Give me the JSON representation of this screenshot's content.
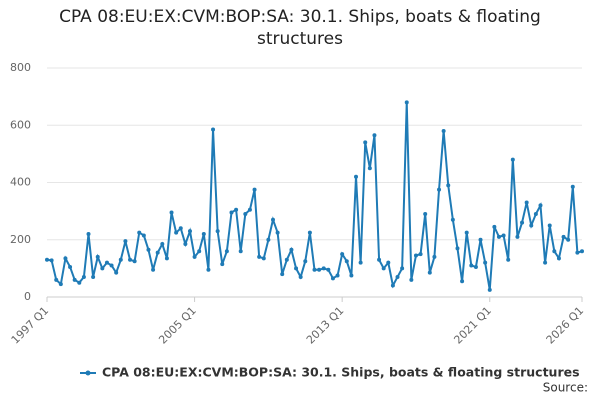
{
  "chart_data": {
    "type": "line",
    "title": "CPA 08:EU:EX:CVM:BOP:SA: 30.1. Ships, boats & floating structures",
    "categories": [
      "1997 Q1",
      null,
      null,
      null,
      null,
      null,
      null,
      null,
      null,
      null,
      null,
      null,
      null,
      null,
      null,
      null,
      null,
      null,
      null,
      null,
      null,
      null,
      null,
      null,
      null,
      null,
      null,
      null,
      null,
      null,
      null,
      null,
      "2005 Q1",
      null,
      null,
      null,
      null,
      null,
      null,
      null,
      null,
      null,
      null,
      null,
      null,
      null,
      null,
      null,
      null,
      null,
      null,
      null,
      null,
      null,
      null,
      null,
      null,
      null,
      null,
      null,
      null,
      null,
      null,
      null,
      "2013 Q1",
      null,
      null,
      null,
      null,
      null,
      null,
      null,
      null,
      null,
      null,
      null,
      null,
      null,
      null,
      null,
      null,
      null,
      null,
      null,
      null,
      null,
      null,
      null,
      null,
      null,
      null,
      null,
      null,
      null,
      null,
      null,
      "2021 Q1",
      null,
      null,
      null,
      null,
      null,
      null,
      null,
      null,
      null,
      null,
      null,
      null,
      null,
      null,
      null,
      null,
      null,
      null,
      null,
      "2026 Q1"
    ],
    "series": [
      {
        "name": "CPA 08:EU:EX:CVM:BOP:SA: 30.1. Ships, boats & floating structures",
        "color": "#1f7bb6",
        "values": [
          130,
          128,
          60,
          45,
          135,
          105,
          60,
          50,
          70,
          220,
          70,
          140,
          100,
          120,
          110,
          85,
          130,
          195,
          130,
          125,
          225,
          215,
          165,
          95,
          155,
          185,
          135,
          295,
          225,
          240,
          185,
          230,
          140,
          160,
          220,
          95,
          585,
          230,
          115,
          160,
          295,
          305,
          160,
          290,
          305,
          375,
          140,
          135,
          200,
          270,
          225,
          80,
          130,
          165,
          100,
          70,
          125,
          225,
          95,
          95,
          100,
          95,
          65,
          75,
          150,
          125,
          75,
          420,
          120,
          540,
          450,
          565,
          130,
          100,
          120,
          40,
          70,
          100,
          680,
          60,
          145,
          150,
          290,
          85,
          140,
          375,
          580,
          390,
          270,
          170,
          55,
          225,
          110,
          105,
          200,
          120,
          25,
          245,
          210,
          215,
          130,
          480,
          210,
          260,
          330,
          250,
          290,
          320,
          120,
          250,
          160,
          135,
          210,
          200,
          385,
          155,
          160
        ]
      }
    ],
    "ylim": [
      0,
      800
    ],
    "yticks": [
      0,
      200,
      400,
      600,
      800
    ],
    "grid": true,
    "legend": "bottom",
    "source": "Source:"
  }
}
